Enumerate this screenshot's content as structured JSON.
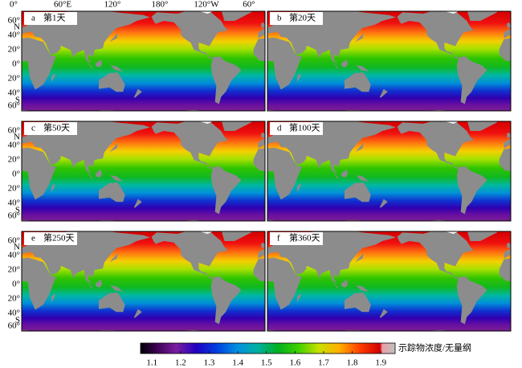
{
  "lon_labels": [
    "0°",
    "60°E",
    "120°",
    "180°",
    "120°W",
    "60°"
  ],
  "lat_labels": [
    "60°",
    "N",
    "40°",
    "20°",
    "0°",
    "20°",
    "40°",
    "S",
    "60°"
  ],
  "panels": [
    {
      "letter": "a",
      "title": "第1天"
    },
    {
      "letter": "b",
      "title": "第20天"
    },
    {
      "letter": "c",
      "title": "第50天"
    },
    {
      "letter": "d",
      "title": "第100天"
    },
    {
      "letter": "e",
      "title": "第250天"
    },
    {
      "letter": "f",
      "title": "第360天"
    }
  ],
  "colorbar": {
    "range": [
      1.06,
      1.95
    ],
    "ticks": [
      1.1,
      1.2,
      1.3,
      1.4,
      1.5,
      1.6,
      1.7,
      1.8,
      1.9
    ],
    "label": "示踪物浓度/无量纲"
  }
}
